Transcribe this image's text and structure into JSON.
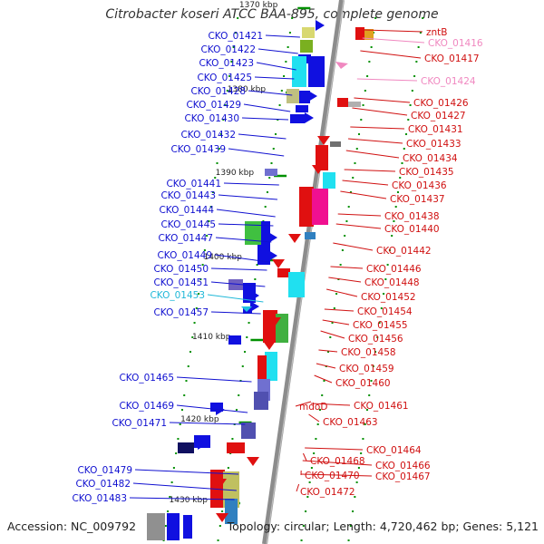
{
  "title": "Citrobacter koseri ATCC BAA-895, complete genome",
  "accession": "Accession: NC_009792",
  "summary": "Topology: circular; Length: 4,720,462 bp; Genes: 5,121",
  "colors": {
    "backbone": "#8c8c8c",
    "forward_gene": "#1010e0",
    "reverse_gene": "#e01010",
    "pseudogene_cyan": "#20c0e0",
    "pseudogene_pink": "#f088c0",
    "tick": "#009000"
  },
  "scale_labels": [
    "1370 kbp",
    "1380 kbp",
    "1390 kbp",
    "1400 kbp",
    "1410 kbp",
    "1420 kbp",
    "1430 kbp"
  ],
  "left_labels": [
    {
      "text": "CKO_01421",
      "color": "#1010d0"
    },
    {
      "text": "CKO_01422",
      "color": "#1010d0"
    },
    {
      "text": "CKO_01423",
      "color": "#1010d0"
    },
    {
      "text": "CKO_01425",
      "color": "#1010d0"
    },
    {
      "text": "CKO_01428",
      "color": "#1010d0"
    },
    {
      "text": "CKO_01429",
      "color": "#1010d0"
    },
    {
      "text": "CKO_01430",
      "color": "#1010d0"
    },
    {
      "text": "CKO_01432",
      "color": "#1010d0"
    },
    {
      "text": "CKO_01439",
      "color": "#1010d0"
    },
    {
      "text": "CKO_01441",
      "color": "#1010d0"
    },
    {
      "text": "CKO_01443",
      "color": "#1010d0"
    },
    {
      "text": "CKO_01444",
      "color": "#1010d0"
    },
    {
      "text": "CKO_01445",
      "color": "#1010d0"
    },
    {
      "text": "CKO_01447",
      "color": "#1010d0"
    },
    {
      "text": "CKO_01449",
      "color": "#1010d0"
    },
    {
      "text": "CKO_01450",
      "color": "#1010d0"
    },
    {
      "text": "CKO_01451",
      "color": "#1010d0"
    },
    {
      "text": "CKO_01453",
      "color": "#20b8d8"
    },
    {
      "text": "CKO_01457",
      "color": "#1010d0"
    },
    {
      "text": "CKO_01465",
      "color": "#1010d0"
    },
    {
      "text": "CKO_01469",
      "color": "#1010d0"
    },
    {
      "text": "CKO_01471",
      "color": "#1010d0"
    },
    {
      "text": "CKO_01479",
      "color": "#1010d0"
    },
    {
      "text": "CKO_01482",
      "color": "#1010d0"
    },
    {
      "text": "CKO_01483",
      "color": "#1010d0"
    }
  ],
  "right_labels": [
    {
      "text": "zntB",
      "color": "#d01010"
    },
    {
      "text": "CKO_01416",
      "color": "#f088c0"
    },
    {
      "text": "CKO_01417",
      "color": "#d01010"
    },
    {
      "text": "CKO_01424",
      "color": "#f088c0"
    },
    {
      "text": "CKO_01426",
      "color": "#d01010"
    },
    {
      "text": "CKO_01427",
      "color": "#d01010"
    },
    {
      "text": "CKO_01431",
      "color": "#d01010"
    },
    {
      "text": "CKO_01433",
      "color": "#d01010"
    },
    {
      "text": "CKO_01434",
      "color": "#d01010"
    },
    {
      "text": "CKO_01435",
      "color": "#d01010"
    },
    {
      "text": "CKO_01436",
      "color": "#d01010"
    },
    {
      "text": "CKO_01437",
      "color": "#d01010"
    },
    {
      "text": "CKO_01438",
      "color": "#d01010"
    },
    {
      "text": "CKO_01440",
      "color": "#d01010"
    },
    {
      "text": "CKO_01442",
      "color": "#d01010"
    },
    {
      "text": "CKO_01446",
      "color": "#d01010"
    },
    {
      "text": "CKO_01448",
      "color": "#d01010"
    },
    {
      "text": "CKO_01452",
      "color": "#d01010"
    },
    {
      "text": "CKO_01454",
      "color": "#d01010"
    },
    {
      "text": "CKO_01455",
      "color": "#d01010"
    },
    {
      "text": "CKO_01456",
      "color": "#d01010"
    },
    {
      "text": "CKO_01458",
      "color": "#d01010"
    },
    {
      "text": "CKO_01459",
      "color": "#d01010"
    },
    {
      "text": "CKO_01460",
      "color": "#d01010"
    },
    {
      "text": "CKO_01461",
      "color": "#d01010"
    },
    {
      "text": "mdoD",
      "color": "#d01010"
    },
    {
      "text": "CKO_01463",
      "color": "#d01010"
    },
    {
      "text": "CKO_01464",
      "color": "#d01010"
    },
    {
      "text": "CKO_01466",
      "color": "#d01010"
    },
    {
      "text": "CKO_01468",
      "color": "#d01010"
    },
    {
      "text": "CKO_01467",
      "color": "#d01010"
    },
    {
      "text": "CKO_01470",
      "color": "#d01010"
    },
    {
      "text": "CKO_01472",
      "color": "#d01010"
    }
  ]
}
